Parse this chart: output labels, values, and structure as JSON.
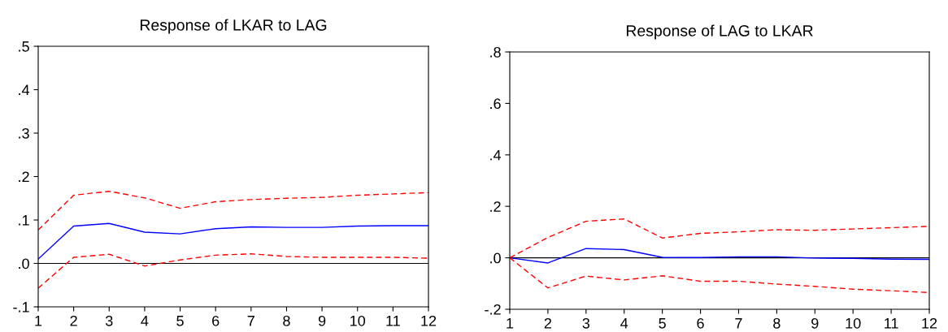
{
  "chart_data": [
    {
      "type": "line",
      "title": "Response of LKAR to LAG",
      "x": [
        1,
        2,
        3,
        4,
        5,
        6,
        7,
        8,
        9,
        10,
        11,
        12
      ],
      "series": [
        {
          "color": "#0000ff",
          "line_style": "solid",
          "values": [
            0.01,
            0.086,
            0.092,
            0.072,
            0.068,
            0.08,
            0.084,
            0.083,
            0.083,
            0.086,
            0.087,
            0.087
          ]
        },
        {
          "color": "#ff0000",
          "line_style": "dashed",
          "values": [
            0.077,
            0.157,
            0.166,
            0.151,
            0.127,
            0.142,
            0.147,
            0.15,
            0.152,
            0.157,
            0.16,
            0.163
          ]
        },
        {
          "color": "#ff0000",
          "line_style": "dashed",
          "values": [
            -0.057,
            0.014,
            0.021,
            -0.006,
            0.008,
            0.019,
            0.022,
            0.016,
            0.014,
            0.014,
            0.014,
            0.012
          ]
        }
      ],
      "xlim": [
        1,
        12
      ],
      "xticks": [
        1,
        2,
        3,
        4,
        5,
        6,
        7,
        8,
        9,
        10,
        11,
        12
      ],
      "ylim": [
        -0.1,
        0.5
      ],
      "yticks": [
        {
          "value": -0.1,
          "label": "-.1"
        },
        {
          "value": 0.0,
          "label": ".0"
        },
        {
          "value": 0.1,
          "label": ".1"
        },
        {
          "value": 0.2,
          "label": ".2"
        },
        {
          "value": 0.3,
          "label": ".3"
        },
        {
          "value": 0.4,
          "label": ".4"
        },
        {
          "value": 0.5,
          "label": ".5"
        }
      ],
      "ref_lines": [
        {
          "axis": "y",
          "value": 0,
          "color": "#000000"
        }
      ],
      "grid": false
    },
    {
      "type": "line",
      "title": "Response of LAG to LKAR",
      "x": [
        1,
        2,
        3,
        4,
        5,
        6,
        7,
        8,
        9,
        10,
        11,
        12
      ],
      "series": [
        {
          "color": "#0000ff",
          "line_style": "solid",
          "values": [
            0.0,
            -0.02,
            0.036,
            0.032,
            0.002,
            0.001,
            0.004,
            0.004,
            -0.001,
            -0.002,
            -0.005,
            -0.006
          ]
        },
        {
          "color": "#ff0000",
          "line_style": "dashed",
          "values": [
            0.0,
            0.079,
            0.142,
            0.151,
            0.077,
            0.095,
            0.101,
            0.109,
            0.107,
            0.112,
            0.117,
            0.122
          ]
        },
        {
          "color": "#ff0000",
          "line_style": "dashed",
          "values": [
            0.0,
            -0.117,
            -0.071,
            -0.086,
            -0.07,
            -0.091,
            -0.091,
            -0.102,
            -0.111,
            -0.122,
            -0.128,
            -0.135
          ]
        }
      ],
      "xlim": [
        1,
        12
      ],
      "xticks": [
        1,
        2,
        3,
        4,
        5,
        6,
        7,
        8,
        9,
        10,
        11,
        12
      ],
      "ylim": [
        -0.2,
        0.8
      ],
      "yticks": [
        {
          "value": -0.2,
          "label": "-.2"
        },
        {
          "value": 0.0,
          "label": ".0"
        },
        {
          "value": 0.2,
          "label": ".2"
        },
        {
          "value": 0.4,
          "label": ".4"
        },
        {
          "value": 0.6,
          "label": ".6"
        },
        {
          "value": 0.8,
          "label": ".8"
        }
      ],
      "ref_lines": [
        {
          "axis": "y",
          "value": 0,
          "color": "#000000"
        }
      ],
      "grid": false
    }
  ]
}
